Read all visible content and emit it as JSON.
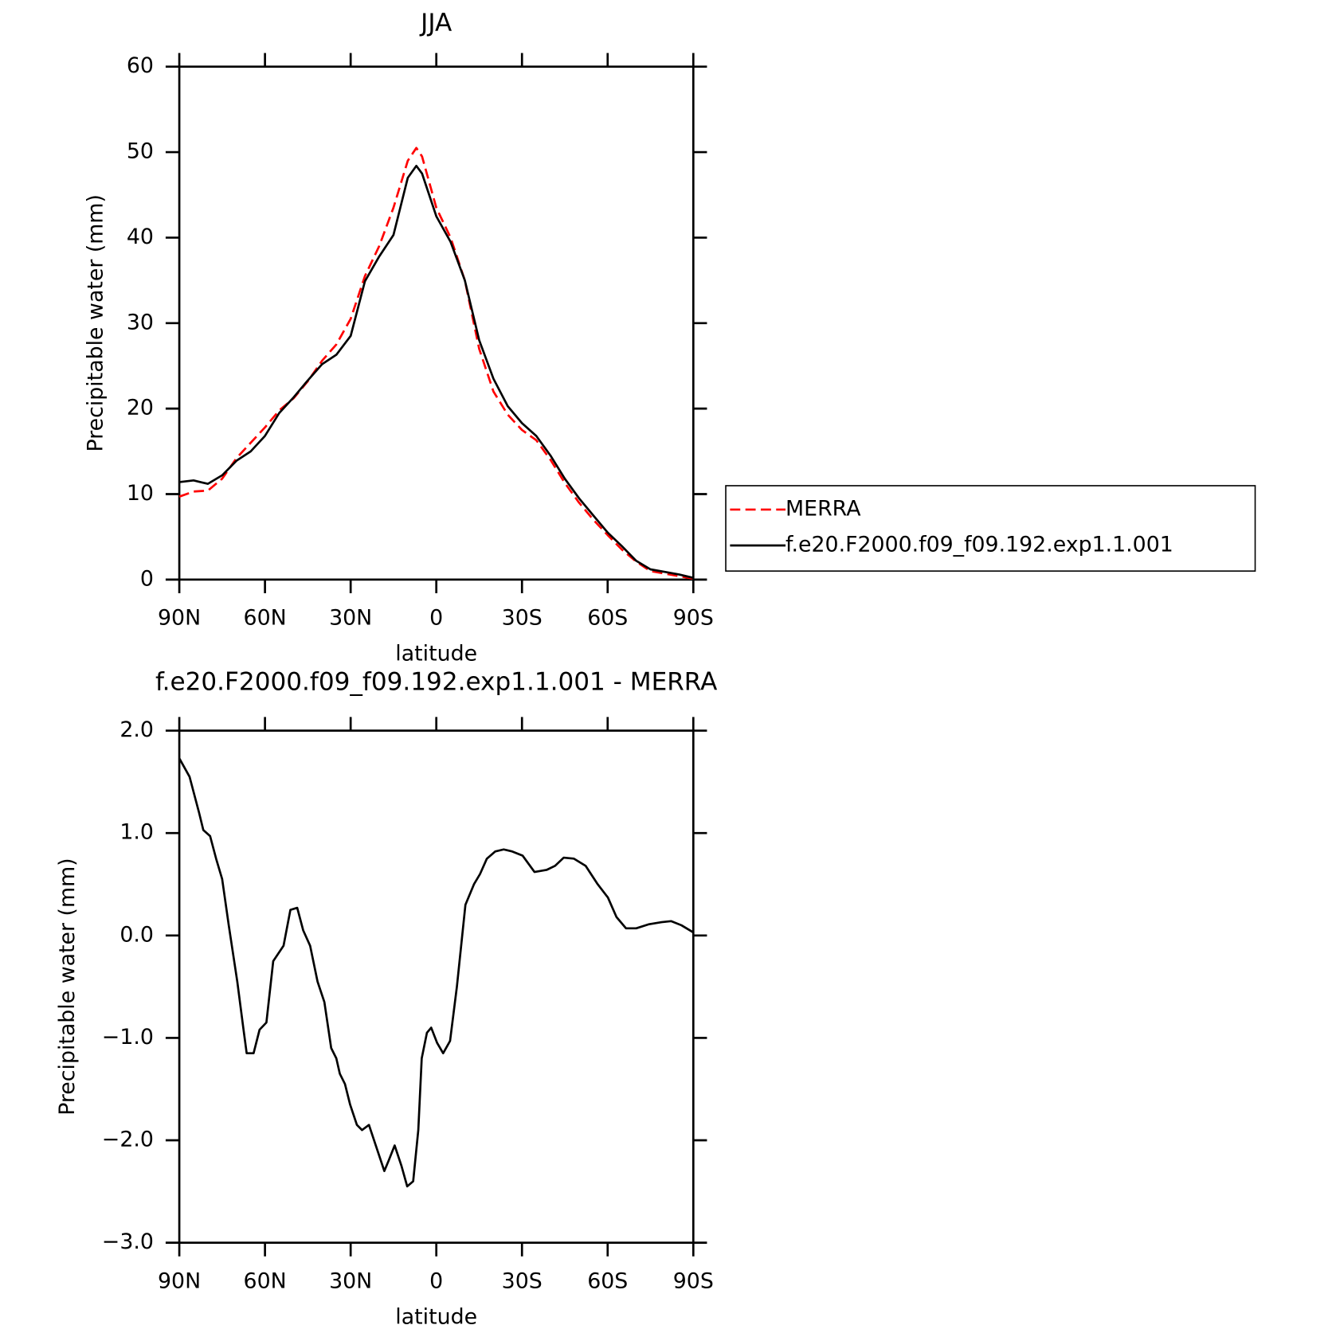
{
  "chart_data": [
    {
      "type": "line",
      "title": "JJA",
      "xlabel": "latitude",
      "ylabel": "Precipitable water (mm)",
      "x": [
        90,
        85,
        80,
        75,
        70,
        65,
        60,
        55,
        50,
        45,
        40,
        35,
        30,
        25,
        20,
        15,
        10,
        7,
        5,
        0,
        -5,
        -10,
        -15,
        -20,
        -25,
        -30,
        -35,
        -40,
        -45,
        -50,
        -55,
        -60,
        -65,
        -70,
        -75,
        -80,
        -85,
        -90
      ],
      "series": [
        {
          "name": "MERRA",
          "color": "#ff0000",
          "style": "dashed",
          "values": [
            9.7,
            10.3,
            10.4,
            11.8,
            14.2,
            16.0,
            17.8,
            19.8,
            21.2,
            23.2,
            25.6,
            27.5,
            30.5,
            35.5,
            39.0,
            43.5,
            49.0,
            50.5,
            49.5,
            43.5,
            40.0,
            35.0,
            27.0,
            22.0,
            19.3,
            17.5,
            16.3,
            14.0,
            11.3,
            9.0,
            7.0,
            5.2,
            3.5,
            2.1,
            1.0,
            0.7,
            0.4,
            0.1
          ]
        },
        {
          "name": "f.e20.F2000.f09_f09.192.exp1.1.001",
          "color": "#000000",
          "style": "solid",
          "values": [
            11.4,
            11.6,
            11.2,
            12.2,
            13.9,
            15.0,
            16.8,
            19.5,
            21.3,
            23.3,
            25.2,
            26.3,
            28.5,
            34.9,
            37.8,
            40.3,
            47.0,
            48.4,
            47.5,
            42.5,
            39.5,
            35.0,
            28.0,
            23.5,
            20.3,
            18.3,
            16.8,
            14.5,
            11.8,
            9.5,
            7.5,
            5.5,
            3.9,
            2.2,
            1.2,
            0.9,
            0.6,
            0.2
          ]
        }
      ],
      "xlim": [
        90,
        -90
      ],
      "xticks": [
        {
          "value": 90,
          "label": "90N"
        },
        {
          "value": 60,
          "label": "60N"
        },
        {
          "value": 30,
          "label": "30N"
        },
        0,
        {
          "value": -30,
          "label": "30S"
        },
        {
          "value": -60,
          "label": "60S"
        },
        {
          "value": -90,
          "label": "90S"
        }
      ],
      "ylim": [
        0,
        60
      ],
      "yticks": [
        0,
        10,
        20,
        30,
        40,
        50,
        60
      ],
      "legend": "right",
      "grid": false
    },
    {
      "type": "line",
      "title": "f.e20.F2000.f09_f09.192.exp1.1.001 - MERRA",
      "xlabel": "latitude",
      "ylabel": "Precipitable water (mm)",
      "x": [
        90,
        86.4,
        83.1,
        81.6,
        79.2,
        77.1,
        75,
        72.7,
        69.7,
        67.6,
        66.4,
        64,
        61.9,
        59.5,
        57.1,
        53.5,
        51.1,
        48.7,
        46.6,
        44.2,
        41.6,
        39.2,
        36.8,
        35,
        33.8,
        32,
        30.2,
        27.8,
        26,
        23.6,
        21.2,
        18.2,
        16.7,
        14.6,
        12.2,
        10.2,
        8.1,
        6.3,
        5.1,
        3.3,
        1.8,
        -0.3,
        -2.4,
        -4.8,
        -7.2,
        -10.2,
        -13.2,
        -15.3,
        -17.7,
        -20.6,
        -23.6,
        -26.6,
        -30.2,
        -34.4,
        -38.6,
        -41.6,
        -44.6,
        -48.2,
        -52.3,
        -56.5,
        -60.1,
        -63.1,
        -66.4,
        -70,
        -74.5,
        -78.9,
        -82.2,
        -85.8,
        -90
      ],
      "color": "#000000",
      "values": [
        1.73,
        1.55,
        1.2,
        1.03,
        0.97,
        0.75,
        0.55,
        0.1,
        -0.45,
        -0.9,
        -1.15,
        -1.15,
        -0.92,
        -0.85,
        -0.25,
        -0.1,
        0.25,
        0.27,
        0.05,
        -0.1,
        -0.45,
        -0.65,
        -1.1,
        -1.2,
        -1.35,
        -1.45,
        -1.65,
        -1.85,
        -1.9,
        -1.85,
        -2.05,
        -2.3,
        -2.2,
        -2.05,
        -2.25,
        -2.45,
        -2.4,
        -1.9,
        -1.2,
        -0.95,
        -0.9,
        -1.05,
        -1.15,
        -1.03,
        -0.5,
        0.3,
        0.5,
        0.6,
        0.75,
        0.82,
        0.84,
        0.82,
        0.78,
        0.62,
        0.64,
        0.68,
        0.76,
        0.75,
        0.68,
        0.5,
        0.37,
        0.18,
        0.07,
        0.07,
        0.11,
        0.13,
        0.14,
        0.1,
        0.03
      ],
      "xlim": [
        90,
        -90
      ],
      "xticks": [
        {
          "value": 90,
          "label": "90N"
        },
        {
          "value": 60,
          "label": "60N"
        },
        {
          "value": 30,
          "label": "30N"
        },
        0,
        {
          "value": -30,
          "label": "30S"
        },
        {
          "value": -60,
          "label": "60S"
        },
        {
          "value": -90,
          "label": "90S"
        }
      ],
      "ylim": [
        -3,
        2
      ],
      "yticks": [
        {
          "value": -3,
          "label": "−3.0"
        },
        {
          "value": -2,
          "label": "−2.0"
        },
        {
          "value": -1,
          "label": "−1.0"
        },
        {
          "value": 0,
          "label": "0.0"
        },
        {
          "value": 1,
          "label": "1.0"
        },
        {
          "value": 2,
          "label": "2.0"
        }
      ],
      "grid": false
    }
  ]
}
